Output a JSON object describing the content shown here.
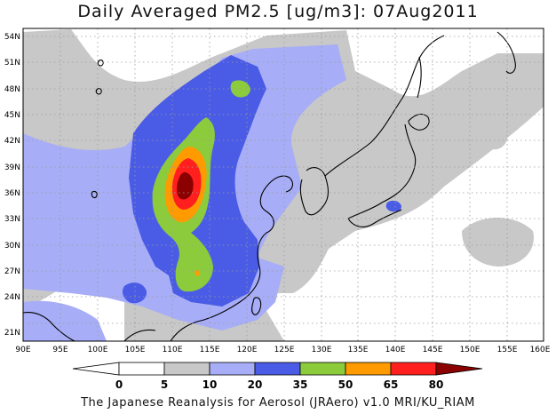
{
  "title": "Daily Averaged PM2.5 [ug/m3]: 07Aug2011",
  "footer": "The Japanese Reanalysis for Aerosol (JRAero) v1.0 MRI/KU_RIAM",
  "map": {
    "lon_range": [
      90,
      160
    ],
    "lat_range": [
      19.5,
      55.5
    ],
    "lon_ticks": [
      "90E",
      "95E",
      "100E",
      "105E",
      "110E",
      "115E",
      "120E",
      "125E",
      "130E",
      "135E",
      "140E",
      "145E",
      "150E",
      "155E",
      "160E"
    ],
    "lat_ticks": [
      "21N",
      "24N",
      "27N",
      "30N",
      "33N",
      "36N",
      "39N",
      "42N",
      "45N",
      "48N",
      "51N",
      "54N"
    ],
    "grid": "dotted"
  },
  "colorbar": {
    "labels": [
      "0",
      "5",
      "10",
      "20",
      "35",
      "50",
      "65",
      "80"
    ],
    "colors": [
      "#ffffff",
      "#c8c8c8",
      "#a7adf6",
      "#4a5ce6",
      "#8ccc3c",
      "#ff9a00",
      "#ff1f1f",
      "#8b0000"
    ]
  }
}
